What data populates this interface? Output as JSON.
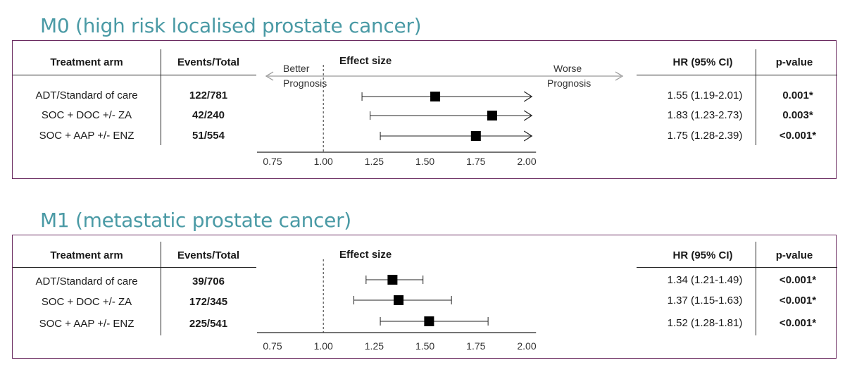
{
  "chart_data": [
    {
      "type": "forest",
      "title": "M0 (high risk localised prostate cancer)",
      "table_headers": {
        "arm": "Treatment arm",
        "events": "Events/Total",
        "effect": "Effect size",
        "hr": "HR (95% CI)",
        "p": "p-value"
      },
      "direction_labels": {
        "left": [
          "Better",
          "Prognosis"
        ],
        "right": [
          "Worse",
          "Prognosis"
        ]
      },
      "xlim": [
        0.75,
        2.0
      ],
      "ticks": [
        "0.75",
        "1.00",
        "1.25",
        "1.50",
        "1.75",
        "2.00"
      ],
      "reference_line": 1.0,
      "rows": [
        {
          "arm": "ADT/Standard of care",
          "events": "122/781",
          "hr": 1.55,
          "lower": 1.19,
          "upper": 2.01,
          "hr_text": "1.55 (1.19-2.01)",
          "p": "0.001*",
          "arrow": false
        },
        {
          "arm": "SOC + DOC +/- ZA",
          "events": "42/240",
          "hr": 1.83,
          "lower": 1.23,
          "upper": 2.73,
          "hr_text": "1.83 (1.23-2.73)",
          "p": "0.003*",
          "arrow": true
        },
        {
          "arm": "SOC + AAP +/- ENZ",
          "events": "51/554",
          "hr": 1.75,
          "lower": 1.28,
          "upper": 2.39,
          "hr_text": "1.75 (1.28-2.39)",
          "p": "<0.001*",
          "arrow": true
        }
      ]
    },
    {
      "type": "forest",
      "title": "M1 (metastatic prostate cancer)",
      "table_headers": {
        "arm": "Treatment arm",
        "events": "Events/Total",
        "effect": "Effect size",
        "hr": "HR (95% CI)",
        "p": "p-value"
      },
      "xlim": [
        0.75,
        2.0
      ],
      "ticks": [
        "0.75",
        "1.00",
        "1.25",
        "1.50",
        "1.75",
        "2.00"
      ],
      "reference_line": 1.0,
      "rows": [
        {
          "arm": "ADT/Standard of care",
          "events": "39/706",
          "hr": 1.34,
          "lower": 1.21,
          "upper": 1.49,
          "hr_text": "1.34 (1.21-1.49)",
          "p": "<0.001*",
          "arrow": false
        },
        {
          "arm": "SOC + DOC +/- ZA",
          "events": "172/345",
          "hr": 1.37,
          "lower": 1.15,
          "upper": 1.63,
          "hr_text": "1.37 (1.15-1.63)",
          "p": "<0.001*",
          "arrow": false
        },
        {
          "arm": "SOC + AAP +/- ENZ",
          "events": "225/541",
          "hr": 1.52,
          "lower": 1.28,
          "upper": 1.81,
          "hr_text": "1.52 (1.28-1.81)",
          "p": "<0.001*",
          "arrow": false
        }
      ]
    }
  ]
}
